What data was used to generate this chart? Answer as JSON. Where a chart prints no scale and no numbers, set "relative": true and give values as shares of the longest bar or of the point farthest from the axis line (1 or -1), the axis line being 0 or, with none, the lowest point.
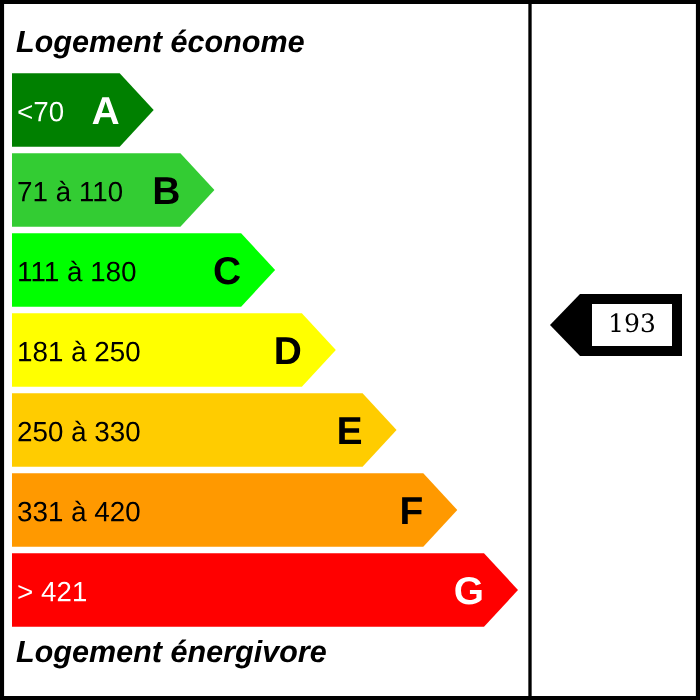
{
  "chart_data": {
    "type": "bar",
    "orientation": "horizontal",
    "relative": true,
    "title": "Logement économe",
    "categories": [
      "<70",
      "71 à 110",
      "111 à 180",
      "181 à 250",
      "250 à 330",
      "331 à 420",
      "> 421"
    ],
    "values": [
      0.28,
      0.4,
      0.52,
      0.64,
      0.76,
      0.88,
      1.0
    ],
    "colors": [
      "#008000",
      "#33cc33",
      "#00ff00",
      "#ffff00",
      "#ffcc00",
      "#ff9900",
      "#ff0000"
    ],
    "annotations": [
      {
        "text": "A",
        "x": 0.28,
        "y": "<70"
      },
      {
        "text": "B",
        "x": 0.4,
        "y": "71 à 110"
      },
      {
        "text": "C",
        "x": 0.52,
        "y": "111 à 180"
      },
      {
        "text": "D",
        "x": 0.64,
        "y": "181 à 250"
      },
      {
        "text": "E",
        "x": 0.76,
        "y": "250 à 330"
      },
      {
        "text": "F",
        "x": 0.88,
        "y": "331 à 420"
      },
      {
        "text": "G",
        "x": 1.0,
        "y": "> 421"
      },
      "Logement énergivore",
      "193"
    ]
  }
}
